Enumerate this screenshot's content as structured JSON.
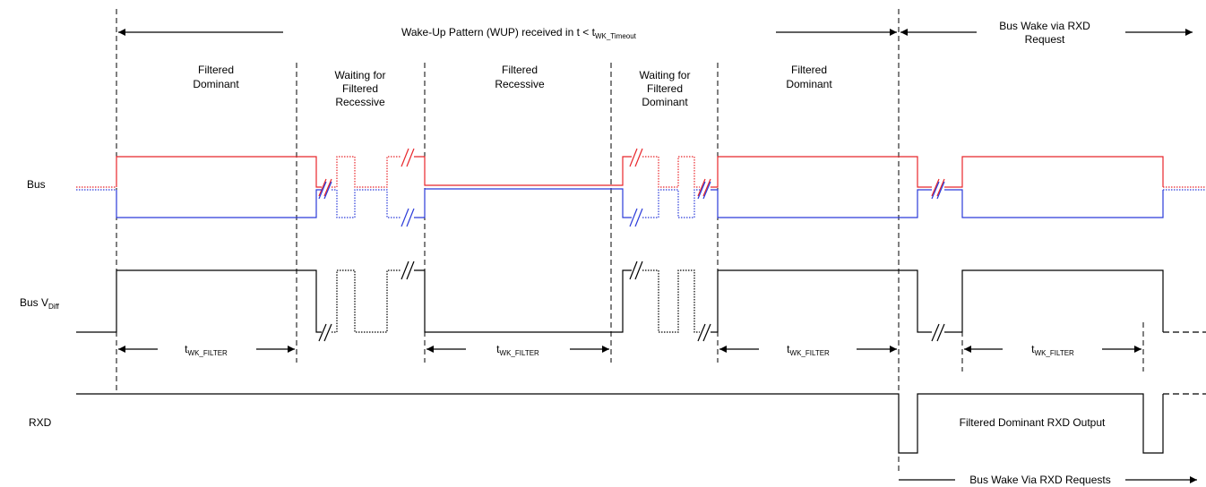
{
  "header": {
    "wup_text": "Wake-Up Pattern (WUP) received in t < t",
    "wup_sub": "WK_Timeout",
    "bus_wake_line1": "Bus Wake via RXD",
    "bus_wake_line2": "Request"
  },
  "phases": [
    {
      "lines": [
        "Filtered",
        "Dominant"
      ]
    },
    {
      "lines": [
        "Waiting for",
        "Filtered",
        "Recessive"
      ]
    },
    {
      "lines": [
        "Filtered",
        "Recessive"
      ]
    },
    {
      "lines": [
        "Waiting for",
        "Filtered",
        "Dominant"
      ]
    },
    {
      "lines": [
        "Filtered",
        "Dominant"
      ]
    }
  ],
  "signals": {
    "bus": "Bus",
    "vdiff_main": "Bus V",
    "vdiff_sub": "Diff",
    "rxd": "RXD"
  },
  "timing": {
    "t_main": "t",
    "t_sub": "WK_FILTER"
  },
  "annotations": {
    "rxd_output": "Filtered Dominant RXD Output",
    "bus_wake_requests": "Bus Wake Via RXD Requests"
  },
  "colors": {
    "canh": "#e8262b",
    "canl": "#2b3bd9",
    "line": "#000000"
  }
}
